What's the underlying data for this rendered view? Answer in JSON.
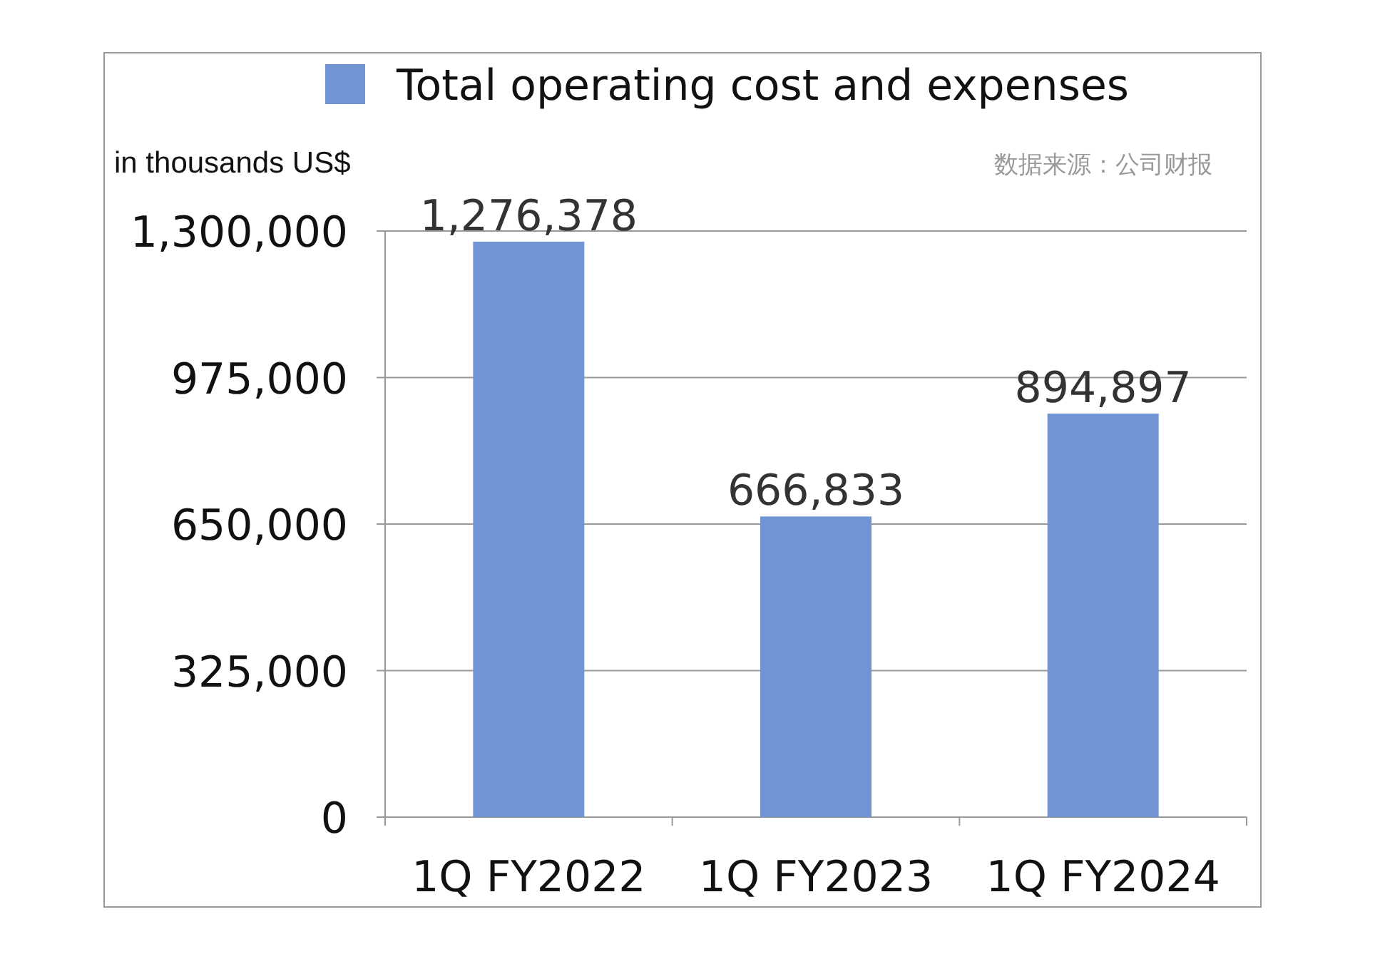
{
  "chart_data": {
    "type": "bar",
    "categories": [
      "1Q FY2022",
      "1Q FY2023",
      "1Q FY2024"
    ],
    "series": [
      {
        "name": "Total operating cost and expenses",
        "color": "#7094d4",
        "values": [
          1276378,
          666833,
          894897
        ],
        "value_labels": [
          "1,276,378",
          "666,833",
          "894,897"
        ]
      }
    ],
    "ylabel": "in thousands US$",
    "ylim": [
      0,
      1300000
    ],
    "yticks": [
      0,
      {
        "value": 325000,
        "label": "325,000"
      },
      {
        "value": 650000,
        "label": "650,000"
      },
      {
        "value": 975000,
        "label": "975,000"
      },
      {
        "value": 1300000,
        "label": "1,300,000"
      }
    ],
    "grid": "y",
    "legend": "top",
    "annotations": [
      "数据来源：公司财报"
    ]
  }
}
